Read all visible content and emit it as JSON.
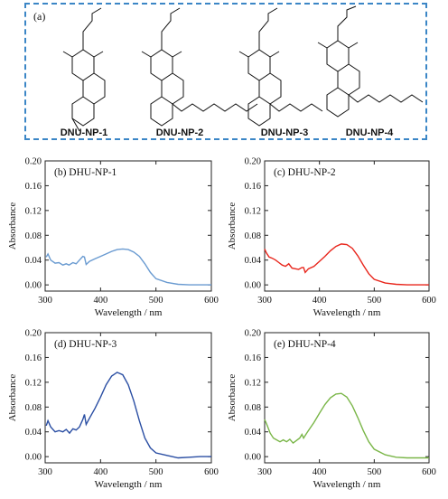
{
  "scheme": {
    "label": "(a)",
    "molecules": [
      "DNU-NP-1",
      "DNU-NP-2",
      "DNU-NP-3",
      "DNU-NP-4"
    ],
    "border_color": "#3b86c6"
  },
  "chart_data": [
    {
      "type": "line",
      "panel": "(b) DHU-NP-1",
      "xlabel": "Wavelength / nm",
      "ylabel": "Absorbance",
      "xlim": [
        300,
        600
      ],
      "ylim": [
        -0.01,
        0.2
      ],
      "xticks": [
        300,
        400,
        500,
        600
      ],
      "yticks": [
        0.0,
        0.04,
        0.08,
        0.12,
        0.16,
        0.2
      ],
      "ytick_labels": [
        "0.00",
        "0.04",
        "0.08",
        "0.12",
        "0.16",
        "0.20"
      ],
      "color": "#6a9bd1",
      "x": [
        302,
        305,
        310,
        318,
        325,
        332,
        338,
        343,
        350,
        356,
        362,
        368,
        371,
        374,
        380,
        390,
        400,
        410,
        420,
        430,
        440,
        450,
        460,
        470,
        480,
        490,
        500,
        520,
        540,
        560,
        580,
        600
      ],
      "y": [
        0.045,
        0.05,
        0.04,
        0.035,
        0.036,
        0.032,
        0.034,
        0.032,
        0.036,
        0.034,
        0.04,
        0.046,
        0.045,
        0.033,
        0.038,
        0.042,
        0.046,
        0.05,
        0.054,
        0.057,
        0.058,
        0.057,
        0.053,
        0.046,
        0.034,
        0.02,
        0.01,
        0.004,
        0.001,
        0.0,
        0.0,
        0.0
      ]
    },
    {
      "type": "line",
      "panel": "(c) DHU-NP-2",
      "xlabel": "Wavelength / nm",
      "ylabel": "Absorbance",
      "xlim": [
        300,
        600
      ],
      "ylim": [
        -0.01,
        0.2
      ],
      "xticks": [
        300,
        400,
        500,
        600
      ],
      "yticks": [
        0.0,
        0.04,
        0.08,
        0.12,
        0.16,
        0.2
      ],
      "ytick_labels": [
        "0.00",
        "0.04",
        "0.08",
        "0.12",
        "0.16",
        "0.20"
      ],
      "color": "#e8261c",
      "x": [
        300,
        303,
        308,
        314,
        320,
        326,
        332,
        338,
        344,
        350,
        356,
        362,
        368,
        371,
        374,
        380,
        390,
        400,
        410,
        420,
        430,
        440,
        450,
        460,
        470,
        480,
        490,
        500,
        520,
        540,
        560,
        580,
        600
      ],
      "y": [
        0.058,
        0.052,
        0.045,
        0.043,
        0.04,
        0.036,
        0.032,
        0.03,
        0.034,
        0.027,
        0.026,
        0.025,
        0.028,
        0.028,
        0.02,
        0.026,
        0.03,
        0.038,
        0.046,
        0.055,
        0.062,
        0.066,
        0.065,
        0.059,
        0.047,
        0.032,
        0.018,
        0.009,
        0.003,
        0.001,
        0.0,
        0.0,
        0.0
      ]
    },
    {
      "type": "line",
      "panel": "(d) DHU-NP-3",
      "xlabel": "Wavelength / nm",
      "ylabel": "Absorbance",
      "xlim": [
        300,
        600
      ],
      "ylim": [
        -0.01,
        0.2
      ],
      "xticks": [
        300,
        400,
        500,
        600
      ],
      "yticks": [
        0.0,
        0.04,
        0.08,
        0.12,
        0.16,
        0.2
      ],
      "ytick_labels": [
        "0.00",
        "0.04",
        "0.08",
        "0.12",
        "0.16",
        "0.20"
      ],
      "color": "#2a4ea3",
      "x": [
        302,
        305,
        310,
        318,
        325,
        332,
        338,
        344,
        350,
        356,
        362,
        368,
        371,
        374,
        380,
        390,
        400,
        410,
        420,
        430,
        440,
        450,
        460,
        470,
        480,
        490,
        500,
        520,
        540,
        560,
        580,
        600
      ],
      "y": [
        0.05,
        0.058,
        0.048,
        0.04,
        0.042,
        0.04,
        0.044,
        0.038,
        0.045,
        0.043,
        0.048,
        0.06,
        0.068,
        0.052,
        0.062,
        0.078,
        0.096,
        0.116,
        0.13,
        0.136,
        0.132,
        0.116,
        0.09,
        0.058,
        0.03,
        0.014,
        0.006,
        0.002,
        -0.002,
        -0.001,
        0.0,
        0.0
      ]
    },
    {
      "type": "line",
      "panel": "(e) DHU-NP-4",
      "xlabel": "Wavelength / nm",
      "ylabel": "Absorbance",
      "xlim": [
        300,
        600
      ],
      "ylim": [
        -0.01,
        0.2
      ],
      "xticks": [
        300,
        400,
        500,
        600
      ],
      "yticks": [
        0.0,
        0.04,
        0.08,
        0.12,
        0.16,
        0.2
      ],
      "ytick_labels": [
        "0.00",
        "0.04",
        "0.08",
        "0.12",
        "0.16",
        "0.20"
      ],
      "color": "#7ab648",
      "x": [
        300,
        304,
        310,
        316,
        322,
        328,
        334,
        340,
        346,
        352,
        358,
        364,
        368,
        371,
        374,
        380,
        390,
        400,
        410,
        420,
        430,
        440,
        450,
        460,
        470,
        480,
        490,
        500,
        520,
        540,
        560,
        580,
        600
      ],
      "y": [
        0.06,
        0.052,
        0.038,
        0.03,
        0.027,
        0.024,
        0.027,
        0.024,
        0.028,
        0.022,
        0.026,
        0.03,
        0.036,
        0.03,
        0.034,
        0.042,
        0.055,
        0.07,
        0.084,
        0.095,
        0.101,
        0.102,
        0.096,
        0.082,
        0.063,
        0.042,
        0.024,
        0.012,
        0.003,
        -0.001,
        -0.002,
        -0.002,
        -0.002
      ]
    }
  ]
}
